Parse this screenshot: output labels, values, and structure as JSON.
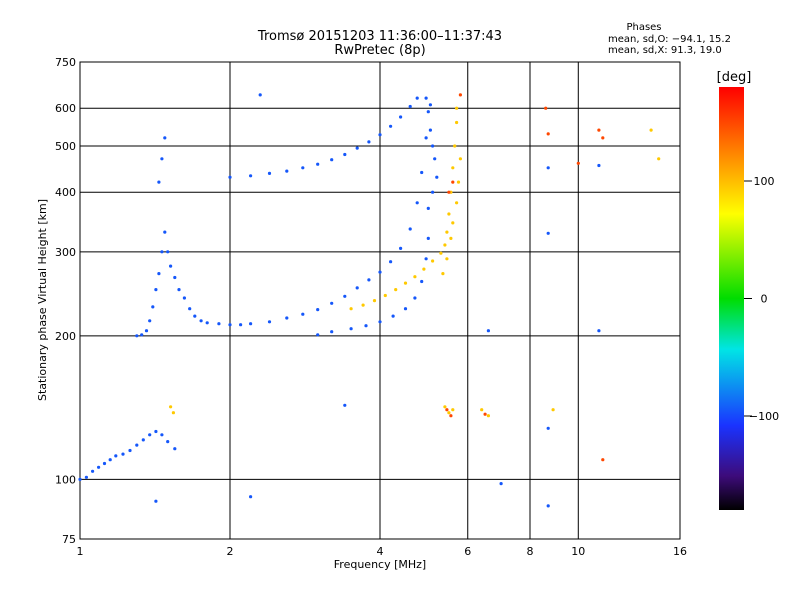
{
  "chart_data": {
    "type": "scatter",
    "title": "Tromsø 20151203 11:36:00–11:37:43",
    "subtitle": "RwPretec (8p)",
    "xlabel": "Frequency [MHz]",
    "ylabel": "Stationary phase Virtual Height [km]",
    "x_scale": "log",
    "y_scale": "log",
    "xlim": [
      1,
      16
    ],
    "ylim": [
      75,
      750
    ],
    "x_ticks": [
      1,
      2,
      4,
      6,
      8,
      10,
      16
    ],
    "y_ticks": [
      75,
      100,
      200,
      300,
      400,
      500,
      600,
      750
    ],
    "grid": true,
    "phases": {
      "title": "Phases",
      "line_o": "mean, sd,O: −94.1, 15.2",
      "line_x": "mean, sd,X:  91.3, 19.0"
    },
    "colorbar": {
      "label": "[deg]",
      "range": [
        -180,
        180
      ],
      "ticks": [
        "100",
        "0",
        "−100"
      ],
      "tick_values": [
        100,
        0,
        -100
      ]
    },
    "colors": {
      "o_mode": "#1f33e8",
      "x_mode": "#f2e21a"
    },
    "series": [
      {
        "mode": "O",
        "phase": -95,
        "points": [
          [
            1.0,
            100
          ],
          [
            1.03,
            101
          ],
          [
            1.06,
            104
          ],
          [
            1.09,
            106
          ],
          [
            1.12,
            108
          ],
          [
            1.15,
            110
          ],
          [
            1.18,
            112
          ],
          [
            1.22,
            113
          ],
          [
            1.26,
            115
          ],
          [
            1.3,
            118
          ],
          [
            1.34,
            121
          ],
          [
            1.38,
            124
          ],
          [
            1.42,
            126
          ],
          [
            1.46,
            124
          ],
          [
            1.5,
            120
          ],
          [
            1.55,
            116
          ],
          [
            1.3,
            200
          ],
          [
            1.33,
            201
          ],
          [
            1.36,
            205
          ],
          [
            1.38,
            215
          ],
          [
            1.4,
            230
          ],
          [
            1.42,
            250
          ],
          [
            1.44,
            270
          ],
          [
            1.46,
            300
          ],
          [
            1.48,
            330
          ],
          [
            1.5,
            300
          ],
          [
            1.52,
            280
          ],
          [
            1.55,
            265
          ],
          [
            1.58,
            250
          ],
          [
            1.62,
            240
          ],
          [
            1.66,
            228
          ],
          [
            1.7,
            220
          ],
          [
            1.75,
            215
          ],
          [
            1.8,
            213
          ],
          [
            1.9,
            212
          ],
          [
            2.0,
            211
          ],
          [
            2.1,
            211
          ],
          [
            2.2,
            212
          ],
          [
            2.4,
            214
          ],
          [
            2.6,
            218
          ],
          [
            2.8,
            222
          ],
          [
            3.0,
            227
          ],
          [
            3.2,
            234
          ],
          [
            3.4,
            242
          ],
          [
            3.6,
            252
          ],
          [
            3.8,
            262
          ],
          [
            4.0,
            272
          ],
          [
            4.2,
            286
          ],
          [
            4.4,
            305
          ],
          [
            4.6,
            335
          ],
          [
            4.75,
            380
          ],
          [
            4.85,
            440
          ],
          [
            4.95,
            520
          ],
          [
            5.05,
            610
          ],
          [
            1.44,
            420
          ],
          [
            1.46,
            470
          ],
          [
            1.48,
            520
          ],
          [
            2.0,
            430
          ],
          [
            2.2,
            433
          ],
          [
            2.4,
            438
          ],
          [
            2.6,
            443
          ],
          [
            2.8,
            450
          ],
          [
            3.0,
            458
          ],
          [
            3.2,
            468
          ],
          [
            3.4,
            480
          ],
          [
            3.6,
            495
          ],
          [
            3.8,
            510
          ],
          [
            4.0,
            528
          ],
          [
            4.2,
            550
          ],
          [
            4.4,
            575
          ],
          [
            4.6,
            605
          ],
          [
            4.75,
            630
          ],
          [
            4.95,
            630
          ],
          [
            5.0,
            590
          ],
          [
            5.05,
            540
          ],
          [
            5.1,
            500
          ],
          [
            5.15,
            470
          ],
          [
            5.2,
            430
          ],
          [
            5.1,
            400
          ],
          [
            5.0,
            370
          ],
          [
            5.0,
            320
          ],
          [
            4.95,
            290
          ],
          [
            4.85,
            260
          ],
          [
            4.7,
            240
          ],
          [
            4.5,
            228
          ],
          [
            4.25,
            220
          ],
          [
            4.0,
            214
          ],
          [
            3.75,
            210
          ],
          [
            3.5,
            207
          ],
          [
            3.2,
            204
          ],
          [
            3.0,
            201
          ],
          [
            3.4,
            143
          ],
          [
            2.3,
            640
          ],
          [
            2.2,
            92
          ],
          [
            1.42,
            90
          ],
          [
            7.0,
            98
          ],
          [
            6.6,
            205
          ],
          [
            8.7,
            88
          ],
          [
            8.7,
            128
          ],
          [
            8.7,
            328
          ],
          [
            8.7,
            450
          ],
          [
            11.0,
            455
          ],
          [
            11.0,
            205
          ]
        ]
      },
      {
        "mode": "X",
        "phase": 95,
        "points": [
          [
            3.5,
            228
          ],
          [
            3.7,
            232
          ],
          [
            3.9,
            237
          ],
          [
            4.1,
            243
          ],
          [
            4.3,
            250
          ],
          [
            4.5,
            258
          ],
          [
            4.7,
            266
          ],
          [
            4.9,
            276
          ],
          [
            5.1,
            287
          ],
          [
            5.3,
            298
          ],
          [
            5.4,
            310
          ],
          [
            5.45,
            330
          ],
          [
            5.5,
            360
          ],
          [
            5.55,
            400
          ],
          [
            5.6,
            450
          ],
          [
            5.65,
            500
          ],
          [
            5.7,
            560
          ],
          [
            5.7,
            600
          ],
          [
            5.35,
            270
          ],
          [
            5.45,
            290
          ],
          [
            5.55,
            320
          ],
          [
            5.6,
            345
          ],
          [
            5.7,
            380
          ],
          [
            5.75,
            420
          ],
          [
            5.8,
            470
          ],
          [
            1.52,
            142
          ],
          [
            1.54,
            138
          ],
          [
            5.4,
            142
          ],
          [
            5.5,
            138
          ],
          [
            5.6,
            140
          ],
          [
            6.4,
            140
          ],
          [
            6.6,
            136
          ],
          [
            8.9,
            140
          ],
          [
            14.0,
            540
          ],
          [
            14.5,
            470
          ]
        ]
      },
      {
        "mode": "X",
        "phase": 150,
        "points": [
          [
            5.5,
            400
          ],
          [
            5.6,
            420
          ],
          [
            5.45,
            140
          ],
          [
            5.55,
            136
          ],
          [
            6.5,
            137
          ],
          [
            8.6,
            600
          ],
          [
            8.7,
            530
          ],
          [
            10.0,
            460
          ],
          [
            11.0,
            540
          ],
          [
            11.2,
            520
          ],
          [
            11.2,
            110
          ],
          [
            5.8,
            640
          ]
        ]
      }
    ]
  }
}
